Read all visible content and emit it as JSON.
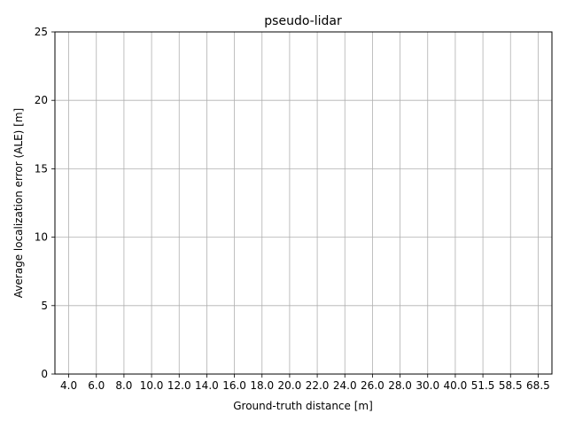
{
  "chart_data": {
    "type": "bar",
    "title": "pseudo-lidar",
    "xlabel": "Ground-truth distance [m]",
    "ylabel": "Average localization error (ALE) [m]",
    "categories": [
      "4.0",
      "6.0",
      "8.0",
      "10.0",
      "12.0",
      "14.0",
      "16.0",
      "18.0",
      "20.0",
      "22.0",
      "24.0",
      "26.0",
      "28.0",
      "30.0",
      "40.0",
      "51.5",
      "58.5",
      "68.5"
    ],
    "series": [],
    "ylim": [
      0,
      25
    ],
    "yticks": [
      0,
      5,
      10,
      15,
      20,
      25
    ],
    "ytick_labels": [
      "0",
      "5",
      "10",
      "15",
      "20",
      "25"
    ],
    "grid": true,
    "colors": {
      "grid": "#b0b0b0",
      "axis": "#000000",
      "background": "#ffffff"
    }
  }
}
